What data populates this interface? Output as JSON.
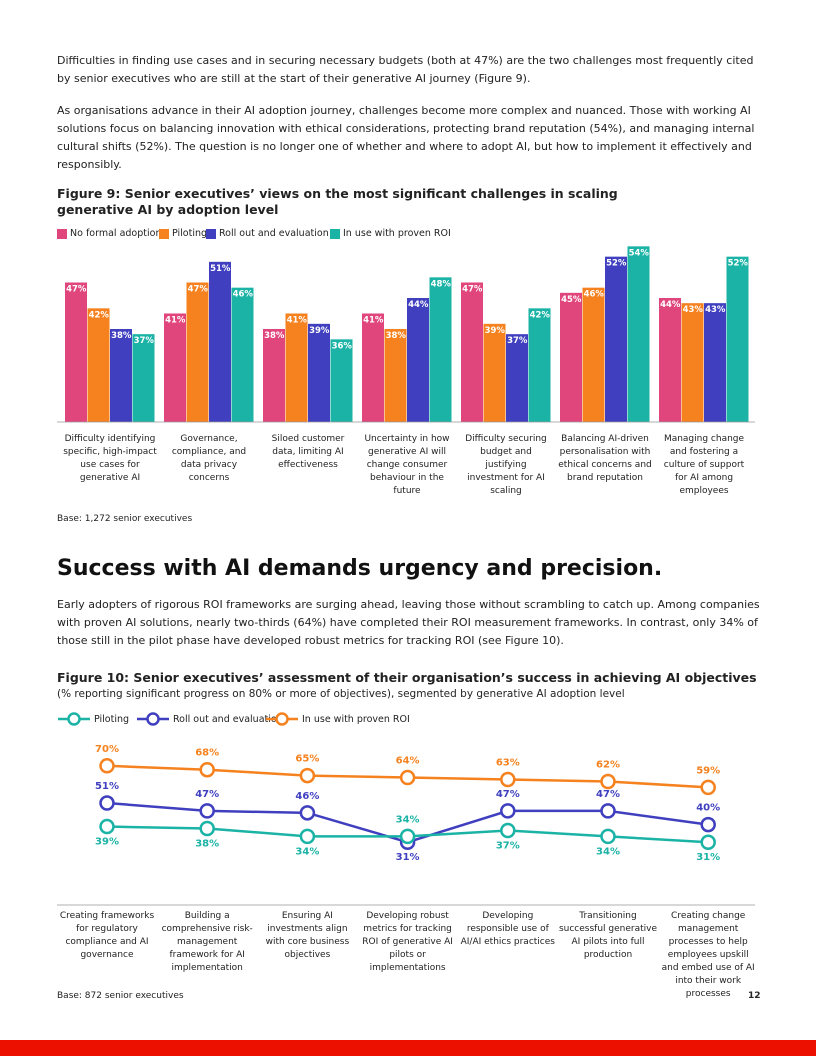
{
  "intro_paragraphs": [
    "Difficulties in finding use cases and in securing necessary budgets (both at 47%) are the two challenges most frequently cited by senior executives who are still at the start of their generative AI journey (Figure 9).",
    "As organisations advance in their AI adoption journey, challenges become more complex and nuanced. Those with working AI solutions focus on balancing innovation with ethical considerations, protecting brand reputation (54%), and managing internal cultural shifts (52%). The question is no longer one of whether and where to adopt AI, but how to implement it effectively and responsibly."
  ],
  "section_heading": "Success with AI demands urgency and precision.",
  "section_paragraph": "Early adopters of rigorous ROI frameworks are surging ahead, leaving those without scrambling to catch up. Among companies with proven AI solutions, nearly two-thirds (64%) have completed their ROI measurement frameworks. In contrast, only 34% of those still in the pilot phase have developed robust metrics for tracking ROI (see Figure 10).",
  "chart_data": [
    {
      "type": "bar",
      "title": "Figure 9: Senior executives’ views on the most significant challenges in scaling generative AI by adoption level",
      "categories": [
        "Difficulty identifying specific, high-impact use cases for generative AI",
        "Governance, compliance, and data privacy concerns",
        "Siloed customer data, limiting AI effectiveness",
        "Uncertainty in how generative AI will change consumer behaviour in the future",
        "Difficulty securing budget and justifying investment for AI scaling",
        "Balancing AI-driven personalisation with ethical concerns and brand reputation",
        "Managing change and fostering a culture of support for AI among employees"
      ],
      "series": [
        {
          "name": "No formal adoption",
          "color": "#e0457b",
          "values": [
            47,
            41,
            38,
            41,
            47,
            45,
            44
          ],
          "value_labels": [
            "47%",
            "41%",
            "38%",
            "41%",
            "47%",
            "45%",
            "44%"
          ]
        },
        {
          "name": "Piloting",
          "color": "#f5821f",
          "values": [
            42,
            47,
            41,
            38,
            39,
            46,
            43
          ],
          "value_labels": [
            "42%",
            "47%",
            "41%",
            "38%",
            "39%",
            "46%",
            "43%"
          ]
        },
        {
          "name": "Roll out and evaluation",
          "color": "#3f3fbf",
          "values": [
            38,
            51,
            39,
            44,
            37,
            52,
            43
          ],
          "value_labels": [
            "38%",
            "51%",
            "39%",
            "44%",
            "37%",
            "52%",
            "43%"
          ]
        },
        {
          "name": "In use with proven ROI",
          "color": "#1bb3a6",
          "values": [
            37,
            46,
            36,
            48,
            42,
            54,
            52
          ],
          "value_labels": [
            "37%",
            "46%",
            "36%",
            "48%",
            "42%",
            "54%",
            "52%"
          ]
        }
      ],
      "ylim": [
        20,
        56
      ],
      "base_note": "Base: 1,272 senior executives"
    },
    {
      "type": "line",
      "title": "Figure 10: Senior executives’ assessment of their organisation’s success in achieving AI objectives",
      "subtitle": "(% reporting significant progress on 80% or more of objectives), segmented by generative AI adoption level",
      "categories": [
        "Creating frameworks for regulatory compliance and AI governance",
        "Building a comprehensive risk-management framework for AI implementation",
        "Ensuring AI investments align with core business objectives",
        "Developing robust metrics for tracking ROI of generative AI pilots or implementations",
        "Developing responsible use of AI/AI ethics practices",
        "Transitioning successful generative AI pilots into full production",
        "Creating change management processes to help employees upskill and embed use of AI into their work processes"
      ],
      "series": [
        {
          "name": "Piloting",
          "color": "#1bb3a6",
          "values": [
            39,
            38,
            34,
            34,
            37,
            34,
            31
          ],
          "value_labels": [
            "39%",
            "38%",
            "34%",
            "34%",
            "37%",
            "34%",
            "31%"
          ]
        },
        {
          "name": "Roll out and evaluation",
          "color": "#3f3fbf",
          "values": [
            51,
            47,
            46,
            31,
            47,
            47,
            40
          ],
          "value_labels": [
            "51%",
            "47%",
            "46%",
            "31%",
            "47%",
            "47%",
            "40%"
          ]
        },
        {
          "name": "In use with proven ROI",
          "color": "#f5821f",
          "values": [
            70,
            68,
            65,
            64,
            63,
            62,
            59
          ],
          "value_labels": [
            "70%",
            "68%",
            "65%",
            "64%",
            "63%",
            "62%",
            "59%"
          ]
        }
      ],
      "ylim": [
        25,
        75
      ],
      "base_note": "Base: 872 senior executives"
    }
  ],
  "page_number": "12"
}
